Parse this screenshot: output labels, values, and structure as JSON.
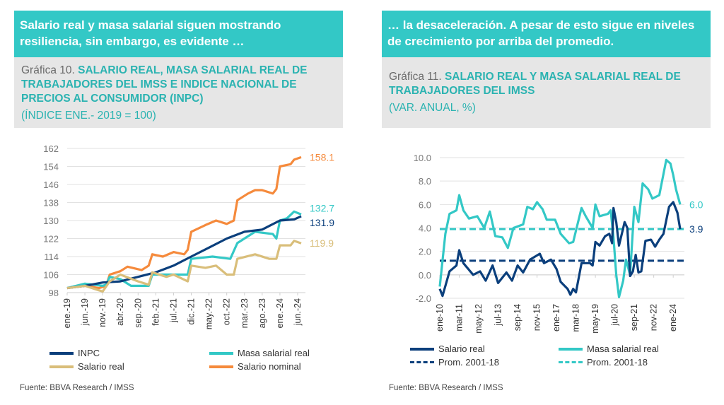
{
  "left": {
    "banner": "Salario real y masa salarial siguen mostrando resiliencia, sin embargo, es evidente  …",
    "chart_prefix": "Gráfica 10. ",
    "chart_title": "SALARIO REAL, MASA SALARIAL REAL DE TRABAJADORES DEL IMSS E INDICE NACIONAL DE PRECIOS AL CONSUMIDOR (INPC)",
    "unit": "(ÍNDICE ENE.- 2019 = 100)",
    "source": "Fuente: BBVA Research / IMSS"
  },
  "right": {
    "banner": "… la desaceleración. A pesar de esto sigue en niveles de crecimiento por arriba del promedio.",
    "chart_prefix": "Gráfica 11. ",
    "chart_title": "SALARIO REAL Y MASA SALARIAL REAL DE TRABAJADORES DEL IMSS",
    "unit": "(VAR. ANUAL, %)",
    "source": "Fuente: BBVA Research / IMSS"
  },
  "chart_data": [
    {
      "type": "line",
      "ylim": [
        98,
        162
      ],
      "yticks": [
        98,
        106,
        114,
        122,
        130,
        138,
        146,
        154,
        162
      ],
      "grid": true,
      "legend": "bottom",
      "xrange": [
        "2019-01",
        "2024-07"
      ],
      "xticks": [
        [
          "2019-01",
          "ene.-19"
        ],
        [
          "2019-06",
          "jun.-19"
        ],
        [
          "2019-11",
          "nov.-19"
        ],
        [
          "2020-04",
          "abr.-20"
        ],
        [
          "2020-09",
          "sep.-20"
        ],
        [
          "2021-02",
          "feb.-21"
        ],
        [
          "2021-07",
          "jul.-21"
        ],
        [
          "2021-12",
          "dic.-21"
        ],
        [
          "2022-05",
          "may.-22"
        ],
        [
          "2022-10",
          "oct.-22"
        ],
        [
          "2023-03",
          "mar.-23"
        ],
        [
          "2023-08",
          "ago.-23"
        ],
        [
          "2024-01",
          "ene.-24"
        ],
        [
          "2024-06",
          "jun.-24"
        ]
      ],
      "series": [
        {
          "name": "Salario nominal",
          "color": "#f58a3c",
          "end_label": "158.1",
          "points": [
            [
              "2019-01",
              100
            ],
            [
              "2019-06",
              101
            ],
            [
              "2019-10",
              100
            ],
            [
              "2019-12",
              101
            ],
            [
              "2020-01",
              106
            ],
            [
              "2020-04",
              107.5
            ],
            [
              "2020-06",
              109.5
            ],
            [
              "2020-10",
              108
            ],
            [
              "2020-12",
              110
            ],
            [
              "2021-01",
              115
            ],
            [
              "2021-04",
              114
            ],
            [
              "2021-07",
              116
            ],
            [
              "2021-10",
              115
            ],
            [
              "2021-11",
              117
            ],
            [
              "2021-12",
              125
            ],
            [
              "2022-04",
              128
            ],
            [
              "2022-07",
              130
            ],
            [
              "2022-10",
              128.5
            ],
            [
              "2022-12",
              130
            ],
            [
              "2023-01",
              139
            ],
            [
              "2023-04",
              142
            ],
            [
              "2023-06",
              143.5
            ],
            [
              "2023-08",
              143.5
            ],
            [
              "2023-11",
              142
            ],
            [
              "2023-12",
              144
            ],
            [
              "2024-01",
              154
            ],
            [
              "2024-04",
              155
            ],
            [
              "2024-05",
              157
            ],
            [
              "2024-07",
              158.1
            ]
          ]
        },
        {
          "name": "Masa salarial real",
          "color": "#33c8c6",
          "end_label": "132.7",
          "points": [
            [
              "2019-01",
              100
            ],
            [
              "2019-06",
              102
            ],
            [
              "2019-11",
              101
            ],
            [
              "2019-12",
              101.5
            ],
            [
              "2020-01",
              105
            ],
            [
              "2020-04",
              104
            ],
            [
              "2020-07",
              101
            ],
            [
              "2020-12",
              101
            ],
            [
              "2021-01",
              106
            ],
            [
              "2021-11",
              106
            ],
            [
              "2021-12",
              113
            ],
            [
              "2022-06",
              114
            ],
            [
              "2022-11",
              113
            ],
            [
              "2023-01",
              120
            ],
            [
              "2023-06",
              125
            ],
            [
              "2023-11",
              124
            ],
            [
              "2023-12",
              122
            ],
            [
              "2024-01",
              130
            ],
            [
              "2024-03",
              131
            ],
            [
              "2024-05",
              134
            ],
            [
              "2024-07",
              132.7
            ]
          ]
        },
        {
          "name": "INPC",
          "color": "#0b3f7c",
          "end_label": "131.9",
          "points": [
            [
              "2019-01",
              100
            ],
            [
              "2019-06",
              101
            ],
            [
              "2019-11",
              102.5
            ],
            [
              "2020-04",
              103
            ],
            [
              "2020-09",
              105
            ],
            [
              "2021-02",
              107
            ],
            [
              "2021-07",
              110
            ],
            [
              "2021-12",
              114
            ],
            [
              "2022-05",
              118
            ],
            [
              "2022-10",
              122
            ],
            [
              "2023-03",
              125
            ],
            [
              "2023-08",
              126
            ],
            [
              "2024-01",
              130
            ],
            [
              "2024-05",
              130.5
            ],
            [
              "2024-07",
              131.9
            ]
          ]
        },
        {
          "name": "Salario real",
          "color": "#d9be7a",
          "end_label": "119.9",
          "points": [
            [
              "2019-01",
              100
            ],
            [
              "2019-06",
              101
            ],
            [
              "2019-10",
              99
            ],
            [
              "2019-11",
              98.5
            ],
            [
              "2020-01",
              103
            ],
            [
              "2020-04",
              106
            ],
            [
              "2020-09",
              103
            ],
            [
              "2020-12",
              101.5
            ],
            [
              "2021-01",
              107
            ],
            [
              "2021-05",
              105
            ],
            [
              "2021-07",
              106
            ],
            [
              "2021-11",
              103
            ],
            [
              "2021-12",
              110
            ],
            [
              "2022-04",
              109
            ],
            [
              "2022-07",
              110
            ],
            [
              "2022-10",
              106
            ],
            [
              "2022-12",
              106
            ],
            [
              "2023-01",
              113
            ],
            [
              "2023-06",
              115
            ],
            [
              "2023-10",
              113
            ],
            [
              "2023-12",
              113
            ],
            [
              "2024-01",
              119
            ],
            [
              "2024-04",
              119
            ],
            [
              "2024-05",
              121
            ],
            [
              "2024-07",
              119.9
            ]
          ]
        }
      ],
      "legend_entries": [
        {
          "label": "INPC",
          "color": "#0b3f7c"
        },
        {
          "label": "Masa salarial real",
          "color": "#33c8c6"
        },
        {
          "label": "Salario real",
          "color": "#d9be7a"
        },
        {
          "label": "Salario nominal",
          "color": "#f58a3c"
        }
      ]
    },
    {
      "type": "line",
      "ylim": [
        -2,
        10
      ],
      "yticks": [
        -2,
        0,
        2,
        4,
        6,
        8,
        10
      ],
      "ytick_labels": [
        "-2.0",
        "0.0",
        "2.0",
        "4.0",
        "6.0",
        "8.0",
        "10.0"
      ],
      "grid": true,
      "legend": "bottom",
      "xrange": [
        "2010-01",
        "2024-06"
      ],
      "xticks": [
        [
          "2010-01",
          "ene-10"
        ],
        [
          "2011-03",
          "mar-11"
        ],
        [
          "2012-05",
          "may-12"
        ],
        [
          "2013-07",
          "jul-13"
        ],
        [
          "2014-09",
          "sep-14"
        ],
        [
          "2015-11",
          "nov-15"
        ],
        [
          "2017-01",
          "ene-17"
        ],
        [
          "2018-03",
          "mar-18"
        ],
        [
          "2019-05",
          "may-19"
        ],
        [
          "2020-07",
          "jul-20"
        ],
        [
          "2021-09",
          "sep-21"
        ],
        [
          "2022-11",
          "nov-22"
        ],
        [
          "2024-01",
          "ene-24"
        ]
      ],
      "hlines": [
        {
          "name": "Prom. 2001-18",
          "value": 3.9,
          "color": "#33c8c6"
        },
        {
          "name": "Prom. 2001-18",
          "value": 1.2,
          "color": "#0b3f7c"
        }
      ],
      "series": [
        {
          "name": "Masa salarial real",
          "color": "#33c8c6",
          "end_label": "6.0",
          "points": [
            [
              "2010-01",
              -1
            ],
            [
              "2010-05",
              3.5
            ],
            [
              "2010-08",
              5.2
            ],
            [
              "2011-01",
              5.5
            ],
            [
              "2011-03",
              6.8
            ],
            [
              "2011-06",
              5.5
            ],
            [
              "2011-10",
              4.8
            ],
            [
              "2012-04",
              5
            ],
            [
              "2012-09",
              4
            ],
            [
              "2013-01",
              5.4
            ],
            [
              "2013-05",
              3.3
            ],
            [
              "2013-10",
              3.2
            ],
            [
              "2014-02",
              2.3
            ],
            [
              "2014-06",
              4
            ],
            [
              "2015-01",
              4.3
            ],
            [
              "2015-04",
              5.8
            ],
            [
              "2015-08",
              5.6
            ],
            [
              "2015-11",
              6.2
            ],
            [
              "2016-03",
              5.6
            ],
            [
              "2016-06",
              4.7
            ],
            [
              "2016-12",
              4.7
            ],
            [
              "2017-04",
              3.5
            ],
            [
              "2017-10",
              2.7
            ],
            [
              "2018-01",
              2.8
            ],
            [
              "2018-07",
              5.7
            ],
            [
              "2018-10",
              5
            ],
            [
              "2019-03",
              4
            ],
            [
              "2019-05",
              6
            ],
            [
              "2019-08",
              5
            ],
            [
              "2020-02",
              5.2
            ],
            [
              "2020-04",
              5.5
            ],
            [
              "2020-06",
              3.2
            ],
            [
              "2020-08",
              0
            ],
            [
              "2020-10",
              -1.9
            ],
            [
              "2021-01",
              -0.5
            ],
            [
              "2021-03",
              1.3
            ],
            [
              "2021-06",
              0
            ],
            [
              "2021-09",
              5.8
            ],
            [
              "2021-12",
              4.5
            ],
            [
              "2022-03",
              7.8
            ],
            [
              "2022-07",
              7.3
            ],
            [
              "2022-10",
              6.5
            ],
            [
              "2023-03",
              6.8
            ],
            [
              "2023-08",
              9.8
            ],
            [
              "2023-11",
              9.5
            ],
            [
              "2024-01",
              8.5
            ],
            [
              "2024-03",
              7.3
            ],
            [
              "2024-06",
              6.0
            ]
          ]
        },
        {
          "name": "Salario real",
          "color": "#0b3f7c",
          "end_label": "3.9",
          "points": [
            [
              "2010-01",
              -1.2
            ],
            [
              "2010-03",
              -1.8
            ],
            [
              "2010-08",
              0.3
            ],
            [
              "2011-01",
              0.8
            ],
            [
              "2011-03",
              2.1
            ],
            [
              "2011-06",
              1
            ],
            [
              "2012-01",
              0
            ],
            [
              "2012-06",
              0.3
            ],
            [
              "2012-10",
              -0.5
            ],
            [
              "2013-03",
              0.8
            ],
            [
              "2013-07",
              -0.7
            ],
            [
              "2014-01",
              0.2
            ],
            [
              "2014-05",
              -0.5
            ],
            [
              "2014-09",
              0.8
            ],
            [
              "2015-01",
              0.2
            ],
            [
              "2015-06",
              1.3
            ],
            [
              "2016-01",
              1.8
            ],
            [
              "2016-04",
              1.0
            ],
            [
              "2016-09",
              1.3
            ],
            [
              "2017-01",
              0.5
            ],
            [
              "2017-04",
              -0.6
            ],
            [
              "2017-09",
              -1.2
            ],
            [
              "2017-11",
              -1.7
            ],
            [
              "2018-01",
              -1.2
            ],
            [
              "2018-03",
              -1.5
            ],
            [
              "2018-07",
              1
            ],
            [
              "2019-01",
              1
            ],
            [
              "2019-03",
              0.8
            ],
            [
              "2019-05",
              2.8
            ],
            [
              "2019-08",
              2.5
            ],
            [
              "2019-12",
              3.3
            ],
            [
              "2020-03",
              3.5
            ],
            [
              "2020-05",
              2.7
            ],
            [
              "2020-06",
              5.7
            ],
            [
              "2020-08",
              4.5
            ],
            [
              "2020-10",
              2.5
            ],
            [
              "2020-12",
              3.5
            ],
            [
              "2021-02",
              4.5
            ],
            [
              "2021-04",
              4
            ],
            [
              "2021-06",
              -0.1
            ],
            [
              "2021-08",
              0.3
            ],
            [
              "2021-10",
              1.7
            ],
            [
              "2021-12",
              0.2
            ],
            [
              "2022-02",
              0.3
            ],
            [
              "2022-05",
              2.9
            ],
            [
              "2022-09",
              3
            ],
            [
              "2022-12",
              2.4
            ],
            [
              "2023-03",
              3
            ],
            [
              "2023-06",
              3.5
            ],
            [
              "2023-10",
              5.8
            ],
            [
              "2024-01",
              6.2
            ],
            [
              "2024-04",
              5.3
            ],
            [
              "2024-06",
              3.9
            ]
          ]
        }
      ],
      "legend_entries": [
        {
          "label": "Salario real",
          "color": "#0b3f7c",
          "style": "solid"
        },
        {
          "label": "Masa salarial real",
          "color": "#33c8c6",
          "style": "solid"
        },
        {
          "label": "Prom. 2001-18",
          "color": "#0b3f7c",
          "style": "dashed"
        },
        {
          "label": "Prom. 2001-18",
          "color": "#33c8c6",
          "style": "dashed"
        }
      ]
    }
  ]
}
